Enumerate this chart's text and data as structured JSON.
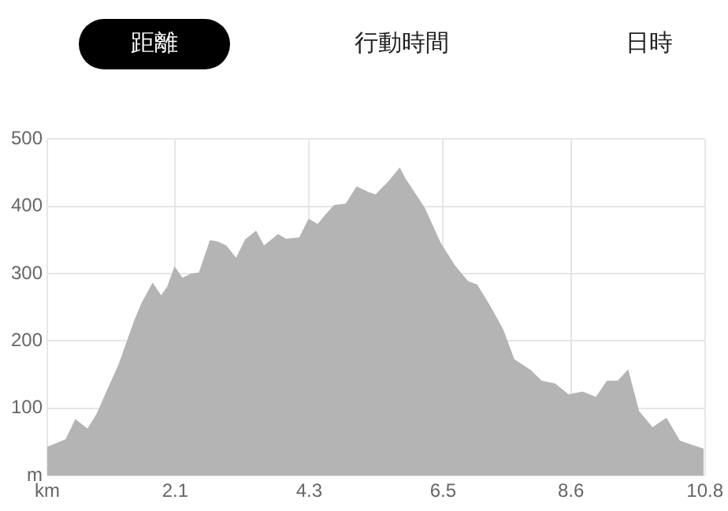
{
  "chart_data": {
    "type": "area",
    "annotations": [
      "距離",
      "行動時間",
      "日時"
    ],
    "x": [
      0,
      0.3,
      0.46,
      0.66,
      0.81,
      0.97,
      1.17,
      1.42,
      1.55,
      1.73,
      1.87,
      1.97,
      2.09,
      2.22,
      2.36,
      2.49,
      2.67,
      2.8,
      2.94,
      3.1,
      3.25,
      3.43,
      3.56,
      3.79,
      3.92,
      4.14,
      4.29,
      4.44,
      4.56,
      4.71,
      4.9,
      5.08,
      5.26,
      5.39,
      5.61,
      5.79,
      5.88,
      6.2,
      6.46,
      6.69,
      6.91,
      7.06,
      7.27,
      7.49,
      7.67,
      7.94,
      8.12,
      8.34,
      8.56,
      8.79,
      9.01,
      9.19,
      9.37,
      9.54,
      9.72,
      9.94,
      10.17,
      10.39,
      10.78
    ],
    "series": [
      {
        "color": "#b4b4b4",
        "values": [
          43,
          54,
          84,
          70,
          92,
          125,
          165,
          229,
          257,
          287,
          268,
          281,
          311,
          294,
          300,
          302,
          350,
          348,
          342,
          324,
          351,
          364,
          342,
          359,
          352,
          354,
          382,
          374,
          387,
          402,
          404,
          430,
          422,
          418,
          438,
          458,
          442,
          398,
          346,
          313,
          289,
          284,
          253,
          217,
          173,
          157,
          141,
          137,
          121,
          125,
          117,
          141,
          141,
          158,
          96,
          72,
          86,
          52,
          40
        ]
      }
    ],
    "xlim": [
      0,
      10.8
    ],
    "xticks": [
      {
        "value": 0,
        "label": "km"
      },
      2.1,
      4.3,
      6.5,
      8.6,
      10.8
    ],
    "ylim": [
      0,
      500
    ],
    "yticks": [
      {
        "value": 0,
        "label": "m"
      },
      100,
      200,
      300,
      400,
      500
    ],
    "grid": true,
    "legend": false
  }
}
